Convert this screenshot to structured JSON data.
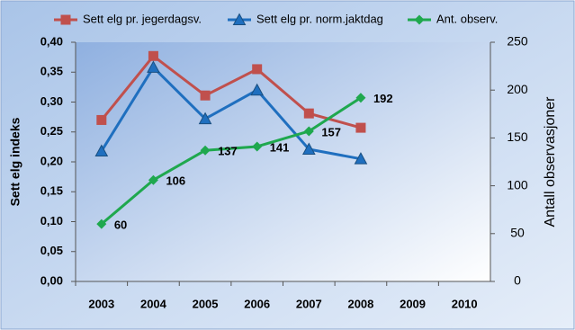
{
  "chart_data": {
    "type": "line",
    "categories": [
      "2003",
      "2004",
      "2005",
      "2006",
      "2007",
      "2008",
      "2009",
      "2010"
    ],
    "ylabel": "Sett elg indeks",
    "y2label": "Antall observasjoner",
    "ylim": [
      0,
      0.4
    ],
    "yticks": [
      {
        "value": 0,
        "label": "0,00"
      },
      {
        "value": 0.05,
        "label": "0,05"
      },
      {
        "value": 0.1,
        "label": "0,10"
      },
      {
        "value": 0.15,
        "label": "0,15"
      },
      {
        "value": 0.2,
        "label": "0,20"
      },
      {
        "value": 0.25,
        "label": "0,25"
      },
      {
        "value": 0.3,
        "label": "0,30"
      },
      {
        "value": 0.35,
        "label": "0,35"
      },
      {
        "value": 0.4,
        "label": "0,40"
      }
    ],
    "y2lim": [
      0,
      250
    ],
    "y2ticks": [
      0,
      50,
      100,
      150,
      200,
      250
    ],
    "series": [
      {
        "name": "Sett elg pr. jegerdagsv.",
        "color": "#c0504d",
        "marker": "square",
        "values": [
          0.27,
          0.377,
          0.311,
          0.355,
          0.281,
          0.257,
          null,
          null
        ]
      },
      {
        "name": "Sett elg pr. norm.jaktdag",
        "color": "#1f6fbf",
        "marker": "triangle",
        "values": [
          0.218,
          0.358,
          0.272,
          0.32,
          0.221,
          0.205,
          null,
          null
        ]
      },
      {
        "name": "Ant. observ.",
        "color": "#1fa84e",
        "marker": "diamond",
        "axis": "y2",
        "data_labels": true,
        "values": [
          60,
          106,
          137,
          141,
          157,
          192,
          null,
          null
        ]
      }
    ]
  }
}
